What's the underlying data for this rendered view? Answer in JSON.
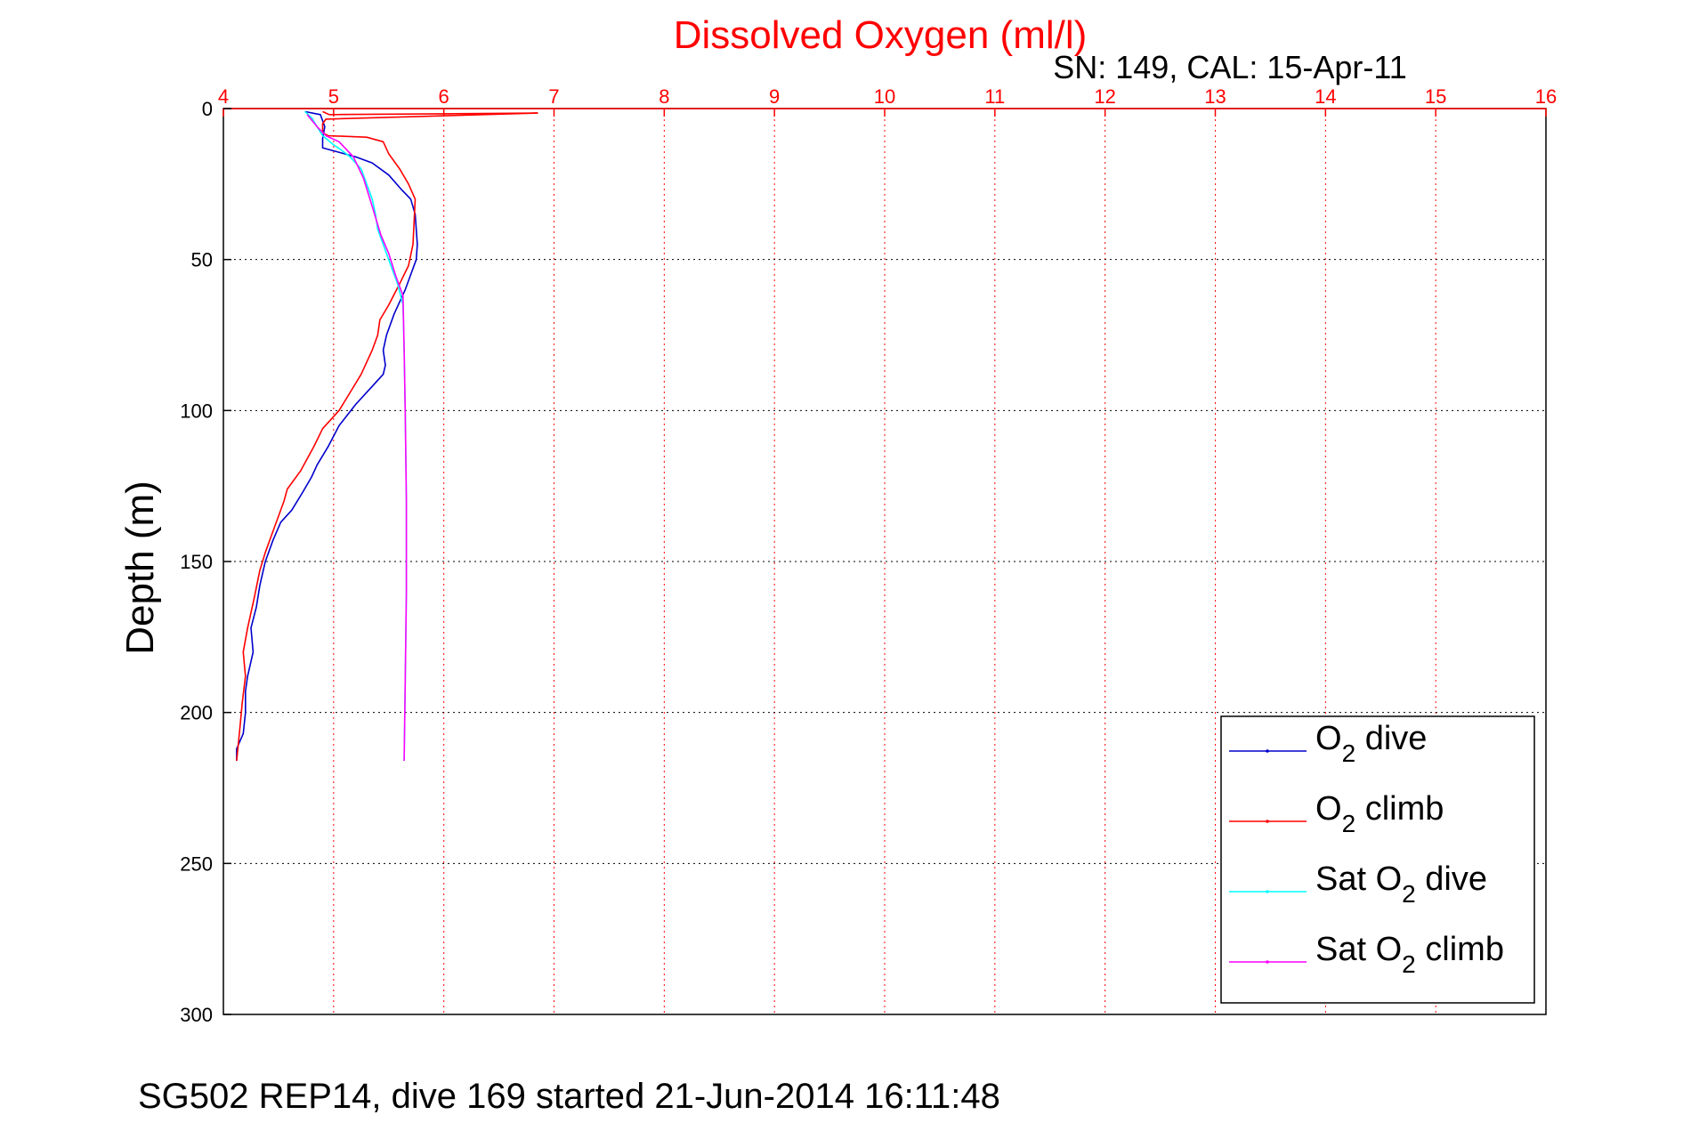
{
  "chart_data": {
    "type": "line",
    "title": "Dissolved Oxygen (ml/l)",
    "subtitle": "SN: 149, CAL: 15-Apr-11",
    "xlabel": "",
    "ylabel": "Depth (m)",
    "xlim": [
      4,
      16
    ],
    "ylim": [
      0,
      300
    ],
    "y_reversed": true,
    "x_axis_position": "top",
    "x_ticks": [
      "4",
      "5",
      "6",
      "7",
      "8",
      "9",
      "10",
      "11",
      "12",
      "13",
      "14",
      "15",
      "16"
    ],
    "y_ticks": [
      "0",
      "50",
      "100",
      "150",
      "200",
      "250",
      "300"
    ],
    "grid": true,
    "legend_position": "bottom-right",
    "colors": {
      "title": "#ff0000",
      "x_ticks": "#ff0000",
      "grid_x": "#ff0000",
      "grid_y": "#000000"
    },
    "series": [
      {
        "name": "O2 dive",
        "color": "#0000cc",
        "points": [
          [
            4.74,
            1
          ],
          [
            4.88,
            2
          ],
          [
            4.9,
            4
          ],
          [
            4.92,
            6
          ],
          [
            4.9,
            10
          ],
          [
            4.9,
            13
          ],
          [
            5.0,
            14
          ],
          [
            5.1,
            15
          ],
          [
            5.2,
            16
          ],
          [
            5.35,
            18
          ],
          [
            5.5,
            22
          ],
          [
            5.62,
            27
          ],
          [
            5.7,
            30
          ],
          [
            5.74,
            35
          ],
          [
            5.75,
            40
          ],
          [
            5.76,
            45
          ],
          [
            5.75,
            50
          ],
          [
            5.7,
            55
          ],
          [
            5.65,
            60
          ],
          [
            5.55,
            68
          ],
          [
            5.48,
            75
          ],
          [
            5.45,
            80
          ],
          [
            5.47,
            85
          ],
          [
            5.45,
            88
          ],
          [
            5.35,
            92
          ],
          [
            5.2,
            98
          ],
          [
            5.05,
            105
          ],
          [
            4.95,
            112
          ],
          [
            4.85,
            118
          ],
          [
            4.8,
            122
          ],
          [
            4.72,
            127
          ],
          [
            4.62,
            133
          ],
          [
            4.52,
            137
          ],
          [
            4.45,
            143
          ],
          [
            4.38,
            150
          ],
          [
            4.33,
            158
          ],
          [
            4.3,
            165
          ],
          [
            4.25,
            172
          ],
          [
            4.27,
            180
          ],
          [
            4.22,
            188
          ],
          [
            4.2,
            193
          ],
          [
            4.2,
            200
          ],
          [
            4.18,
            207
          ],
          [
            4.12,
            212
          ],
          [
            4.12,
            216
          ]
        ]
      },
      {
        "name": "O2 climb",
        "color": "#ff0000",
        "points": [
          [
            4.12,
            216
          ],
          [
            4.15,
            205
          ],
          [
            4.17,
            197
          ],
          [
            4.2,
            188
          ],
          [
            4.18,
            180
          ],
          [
            4.22,
            172
          ],
          [
            4.28,
            162
          ],
          [
            4.33,
            153
          ],
          [
            4.38,
            147
          ],
          [
            4.45,
            140
          ],
          [
            4.5,
            135
          ],
          [
            4.55,
            130
          ],
          [
            4.58,
            126
          ],
          [
            4.7,
            120
          ],
          [
            4.82,
            112
          ],
          [
            4.9,
            106
          ],
          [
            5.05,
            100
          ],
          [
            5.15,
            94
          ],
          [
            5.25,
            88
          ],
          [
            5.35,
            80
          ],
          [
            5.4,
            75
          ],
          [
            5.42,
            70
          ],
          [
            5.5,
            65
          ],
          [
            5.6,
            58
          ],
          [
            5.68,
            52
          ],
          [
            5.72,
            45
          ],
          [
            5.73,
            38
          ],
          [
            5.74,
            30
          ],
          [
            5.68,
            25
          ],
          [
            5.6,
            20
          ],
          [
            5.5,
            15
          ],
          [
            5.45,
            11
          ],
          [
            5.3,
            9.5
          ],
          [
            4.95,
            9
          ],
          [
            4.9,
            8
          ],
          [
            4.9,
            5
          ],
          [
            4.93,
            3.5
          ],
          [
            6.85,
            1.5
          ],
          [
            4.96,
            2
          ],
          [
            4.9,
            1
          ]
        ]
      },
      {
        "name": "Sat O2 dive",
        "color": "#00ffff",
        "points": [
          [
            4.74,
            1
          ],
          [
            4.8,
            3
          ],
          [
            4.85,
            6
          ],
          [
            4.9,
            9
          ],
          [
            5.0,
            12
          ],
          [
            5.08,
            14
          ],
          [
            5.15,
            16
          ],
          [
            5.25,
            20
          ],
          [
            5.3,
            25
          ],
          [
            5.35,
            30
          ],
          [
            5.38,
            35
          ],
          [
            5.4,
            40
          ],
          [
            5.45,
            45
          ],
          [
            5.52,
            52
          ],
          [
            5.58,
            58
          ],
          [
            5.63,
            65
          ],
          [
            5.64,
            80
          ],
          [
            5.65,
            100
          ],
          [
            5.66,
            130
          ],
          [
            5.66,
            160
          ],
          [
            5.65,
            190
          ],
          [
            5.64,
            216
          ]
        ]
      },
      {
        "name": "Sat O2 climb",
        "color": "#ff00ff",
        "points": [
          [
            5.64,
            216
          ],
          [
            5.65,
            190
          ],
          [
            5.66,
            160
          ],
          [
            5.66,
            130
          ],
          [
            5.65,
            100
          ],
          [
            5.64,
            80
          ],
          [
            5.63,
            62
          ],
          [
            5.56,
            55
          ],
          [
            5.5,
            48
          ],
          [
            5.43,
            42
          ],
          [
            5.38,
            36
          ],
          [
            5.33,
            30
          ],
          [
            5.27,
            23
          ],
          [
            5.18,
            16
          ],
          [
            5.05,
            11
          ],
          [
            4.93,
            9
          ],
          [
            4.85,
            6
          ],
          [
            4.76,
            2
          ]
        ]
      }
    ]
  },
  "legend": {
    "items": [
      {
        "pre": "O",
        "sub": "2",
        "post": " dive",
        "color": "#0000cc"
      },
      {
        "pre": "O",
        "sub": "2",
        "post": " climb",
        "color": "#ff0000"
      },
      {
        "pre": "Sat O",
        "sub": "2",
        "post": " dive",
        "color": "#00ffff"
      },
      {
        "pre": "Sat O",
        "sub": "2",
        "post": " climb",
        "color": "#ff00ff"
      }
    ]
  },
  "caption": "SG502 REP14, dive 169 started 21-Jun-2014 16:11:48"
}
